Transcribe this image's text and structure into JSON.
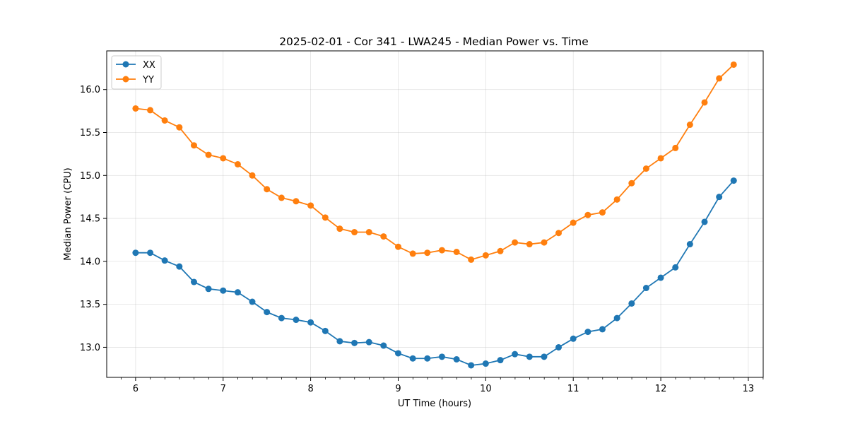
{
  "chart_data": {
    "type": "line",
    "title": "2025-02-01 - Cor 341 - LWA245 - Median Power vs. Time",
    "xlabel": "UT Time (hours)",
    "ylabel": "Median Power (CPU)",
    "xlim": [
      5.67,
      13.17
    ],
    "ylim": [
      12.65,
      16.45
    ],
    "xticks": [
      6,
      7,
      8,
      9,
      10,
      11,
      12,
      13
    ],
    "xtick_labels": [
      "6",
      "7",
      "8",
      "9",
      "10",
      "11",
      "12",
      "13"
    ],
    "xminor_step": 0.1667,
    "yticks": [
      13.0,
      13.5,
      14.0,
      14.5,
      15.0,
      15.5,
      16.0
    ],
    "ytick_labels": [
      "13.0",
      "13.5",
      "14.0",
      "14.5",
      "15.0",
      "15.5",
      "16.0"
    ],
    "grid": true,
    "legend_position": "top-left",
    "x": [
      6.0,
      6.167,
      6.333,
      6.5,
      6.667,
      6.833,
      7.0,
      7.167,
      7.333,
      7.5,
      7.667,
      7.833,
      8.0,
      8.167,
      8.333,
      8.5,
      8.667,
      8.833,
      9.0,
      9.167,
      9.333,
      9.5,
      9.667,
      9.833,
      10.0,
      10.167,
      10.333,
      10.5,
      10.667,
      10.833,
      11.0,
      11.167,
      11.333,
      11.5,
      11.667,
      11.833,
      12.0,
      12.167,
      12.333,
      12.5,
      12.667,
      12.833
    ],
    "series": [
      {
        "name": "XX",
        "color": "#1f77b4",
        "values": [
          14.1,
          14.1,
          14.01,
          13.94,
          13.76,
          13.68,
          13.66,
          13.64,
          13.53,
          13.41,
          13.34,
          13.32,
          13.29,
          13.19,
          13.07,
          13.05,
          13.06,
          13.02,
          12.93,
          12.87,
          12.87,
          12.89,
          12.86,
          12.79,
          12.81,
          12.85,
          12.92,
          12.89,
          12.89,
          13.0,
          13.1,
          13.18,
          13.21,
          13.34,
          13.51,
          13.69,
          13.81,
          13.93,
          14.2,
          14.46,
          14.75,
          14.94
        ]
      },
      {
        "name": "YY",
        "color": "#ff7f0e",
        "values": [
          15.78,
          15.76,
          15.64,
          15.56,
          15.35,
          15.24,
          15.2,
          15.13,
          15.0,
          14.84,
          14.74,
          14.7,
          14.65,
          14.51,
          14.38,
          14.34,
          14.34,
          14.29,
          14.17,
          14.09,
          14.1,
          14.13,
          14.11,
          14.02,
          14.07,
          14.12,
          14.22,
          14.2,
          14.22,
          14.33,
          14.45,
          14.54,
          14.57,
          14.72,
          14.91,
          15.08,
          15.2,
          15.32,
          15.59,
          15.85,
          16.13,
          16.29
        ]
      }
    ]
  }
}
